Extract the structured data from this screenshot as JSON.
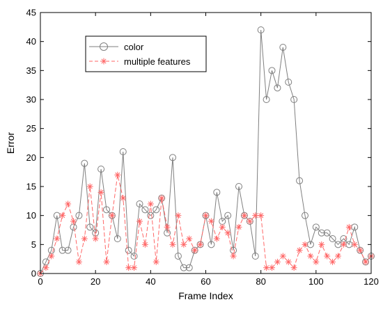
{
  "chart_data": {
    "type": "line",
    "title": "",
    "xlabel": "Frame Index",
    "ylabel": "Error",
    "xlim": [
      0,
      120
    ],
    "ylim": [
      0,
      45
    ],
    "xticks": [
      0,
      20,
      40,
      60,
      80,
      100,
      120
    ],
    "yticks": [
      0,
      5,
      10,
      15,
      20,
      25,
      30,
      35,
      40,
      45
    ],
    "grid": false,
    "legend_position": "top-left",
    "series": [
      {
        "name": "color",
        "color": "#7f7f7f",
        "line_style": "solid",
        "marker": "circle",
        "x": [
          0,
          2,
          4,
          6,
          8,
          10,
          12,
          14,
          16,
          18,
          20,
          22,
          24,
          26,
          28,
          30,
          32,
          34,
          36,
          38,
          40,
          42,
          44,
          46,
          48,
          50,
          52,
          54,
          56,
          58,
          60,
          62,
          64,
          66,
          68,
          70,
          72,
          74,
          76,
          78,
          80,
          82,
          84,
          86,
          88,
          90,
          92,
          94,
          96,
          98,
          100,
          102,
          104,
          106,
          108,
          110,
          112,
          114,
          116,
          118,
          120
        ],
        "y": [
          0,
          2,
          4,
          10,
          4,
          4,
          8,
          10,
          19,
          8,
          7,
          18,
          11,
          10,
          6,
          21,
          4,
          3,
          12,
          11,
          10,
          11,
          13,
          7,
          20,
          3,
          1,
          1,
          4,
          5,
          10,
          5,
          14,
          9,
          10,
          4,
          15,
          10,
          9,
          3,
          42,
          30,
          35,
          32,
          39,
          33,
          30,
          16,
          10,
          5,
          8,
          7,
          7,
          6,
          5,
          6,
          5,
          8,
          4,
          2,
          3
        ]
      },
      {
        "name": "multiple features",
        "color": "#ff6666",
        "line_style": "dashed",
        "marker": "star",
        "x": [
          0,
          2,
          4,
          6,
          8,
          10,
          12,
          14,
          16,
          18,
          20,
          22,
          24,
          26,
          28,
          30,
          32,
          34,
          36,
          38,
          40,
          42,
          44,
          46,
          48,
          50,
          52,
          54,
          56,
          58,
          60,
          62,
          64,
          66,
          68,
          70,
          72,
          74,
          76,
          78,
          80,
          82,
          84,
          86,
          88,
          90,
          92,
          94,
          96,
          98,
          100,
          102,
          104,
          106,
          108,
          110,
          112,
          114,
          116,
          118,
          120
        ],
        "y": [
          0,
          1,
          3,
          6,
          10,
          12,
          9,
          2,
          6,
          15,
          6,
          14,
          2,
          10,
          17,
          13,
          1,
          1,
          9,
          5,
          12,
          2,
          13,
          8,
          5,
          10,
          5,
          6,
          4,
          5,
          10,
          9,
          6,
          8,
          7,
          3,
          8,
          10,
          9,
          10,
          10,
          1,
          1,
          2,
          3,
          2,
          1,
          4,
          5,
          3,
          2,
          5,
          3,
          2,
          3,
          5,
          8,
          5,
          4,
          2,
          3
        ]
      }
    ]
  }
}
